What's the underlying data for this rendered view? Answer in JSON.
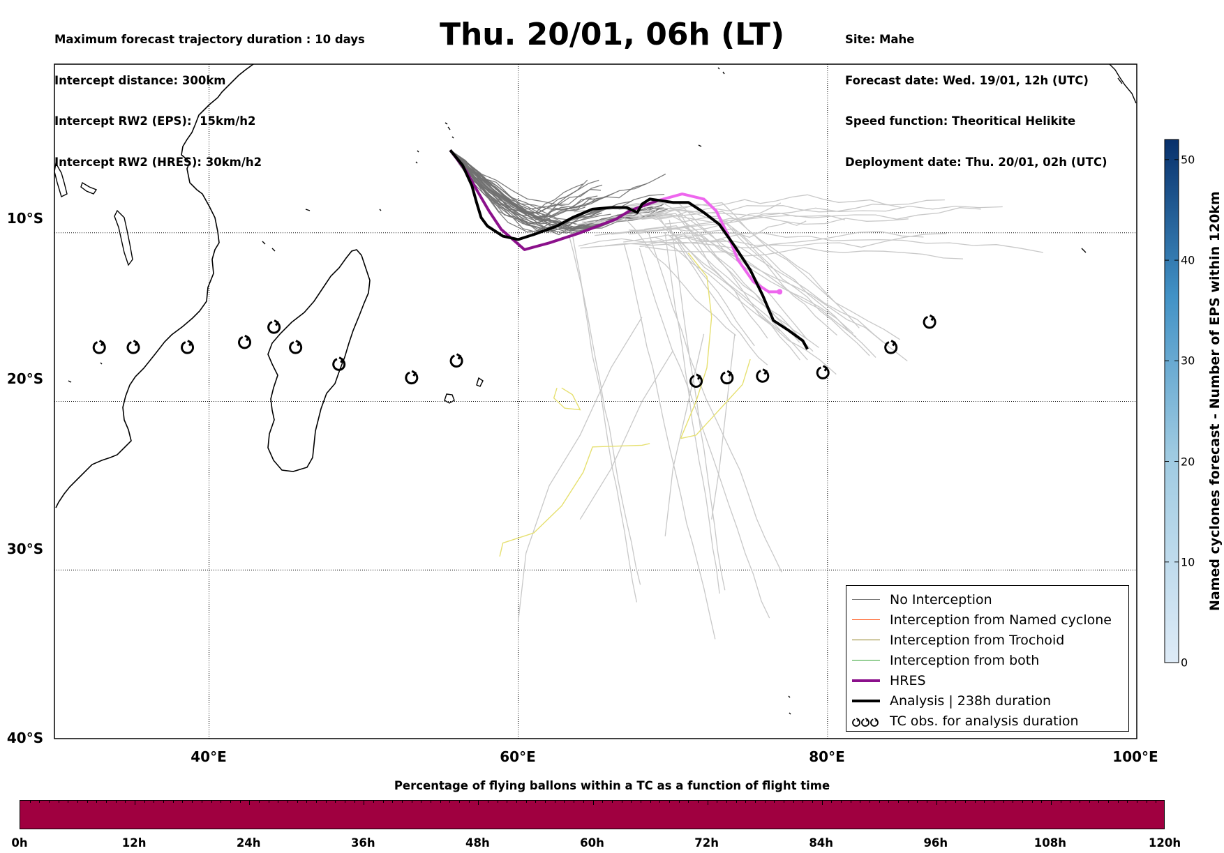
{
  "header_left": [
    "Maximum forecast trajectory duration : 10 days",
    "Intercept distance: 300km",
    "Intercept RW2 (EPS):  15km/h2",
    "Intercept RW2 (HRES): 30km/h2"
  ],
  "header_right": [
    "Site: Mahe",
    "Forecast date: Wed. 19/01, 12h (UTC)",
    "Speed function: Theoritical Helikite",
    "Deployment date: Thu. 20/01, 02h (UTC)"
  ],
  "title": "Thu. 20/01, 06h (LT)",
  "map": {
    "lon_range": [
      30,
      100
    ],
    "lat_range": [
      -40,
      0
    ],
    "lon_ticks": [
      "40°E",
      "60°E",
      "80°E",
      "100°E"
    ],
    "lat_ticks": [
      "10°S",
      "20°S",
      "30°S",
      "40°S"
    ],
    "colors": {
      "no_interception": "#888888",
      "no_interception_light": "#cccccc",
      "named_cyclone": "#ff5a1f",
      "trochoid": "#8a7a1a",
      "both": "#2ea02e",
      "hres": "#8b108b",
      "hres_late": "#ee66ee",
      "analysis": "#000000",
      "yellow_track": "#e6e070"
    },
    "tc_obs": [
      {
        "lon": 32.9,
        "lat": -16.8
      },
      {
        "lon": 35.1,
        "lat": -16.8
      },
      {
        "lon": 38.6,
        "lat": -16.8
      },
      {
        "lon": 42.3,
        "lat": -16.5
      },
      {
        "lon": 44.2,
        "lat": -15.6
      },
      {
        "lon": 45.6,
        "lat": -16.8
      },
      {
        "lon": 48.4,
        "lat": -17.8
      },
      {
        "lon": 53.1,
        "lat": -18.6
      },
      {
        "lon": 56.0,
        "lat": -17.6
      },
      {
        "lon": 71.5,
        "lat": -18.8
      },
      {
        "lon": 73.5,
        "lat": -18.6
      },
      {
        "lon": 75.8,
        "lat": -18.5
      },
      {
        "lon": 79.7,
        "lat": -18.3
      },
      {
        "lon": 84.1,
        "lat": -16.8
      },
      {
        "lon": 86.6,
        "lat": -15.3
      }
    ],
    "hres_track": [
      [
        55.6,
        -5.1
      ],
      [
        56.6,
        -6.3
      ],
      [
        57.4,
        -7.6
      ],
      [
        58.1,
        -8.7
      ],
      [
        58.9,
        -9.8
      ],
      [
        60.4,
        -11.0
      ],
      [
        62.0,
        -10.6
      ],
      [
        64.0,
        -10.0
      ],
      [
        66.3,
        -9.2
      ],
      [
        67.2,
        -8.7
      ],
      [
        69.0,
        -8.1
      ],
      [
        70.6,
        -7.7
      ],
      [
        72.0,
        -8.0
      ],
      [
        72.8,
        -8.7
      ],
      [
        73.5,
        -10.0
      ],
      [
        74.2,
        -11.6
      ],
      [
        75.2,
        -12.9
      ],
      [
        76.2,
        -13.5
      ],
      [
        76.9,
        -13.5
      ]
    ],
    "hres_split_index": 10,
    "analysis_track": [
      [
        55.6,
        -5.1
      ],
      [
        56.4,
        -6.0
      ],
      [
        57.0,
        -7.2
      ],
      [
        57.3,
        -8.2
      ],
      [
        57.6,
        -9.1
      ],
      [
        58.0,
        -9.6
      ],
      [
        59.0,
        -10.2
      ],
      [
        60.0,
        -10.4
      ],
      [
        61.0,
        -10.1
      ],
      [
        62.5,
        -9.6
      ],
      [
        63.5,
        -9.1
      ],
      [
        64.8,
        -8.6
      ],
      [
        66.0,
        -8.5
      ],
      [
        67.0,
        -8.5
      ],
      [
        67.7,
        -8.8
      ],
      [
        68.0,
        -8.3
      ],
      [
        68.5,
        -8.0
      ],
      [
        70.0,
        -8.2
      ],
      [
        71.0,
        -8.2
      ],
      [
        72.0,
        -8.8
      ],
      [
        73.0,
        -9.5
      ],
      [
        74.0,
        -10.8
      ],
      [
        75.0,
        -12.2
      ],
      [
        75.8,
        -13.7
      ],
      [
        76.5,
        -15.2
      ],
      [
        77.5,
        -15.8
      ],
      [
        78.4,
        -16.4
      ],
      [
        78.7,
        -16.9
      ]
    ]
  },
  "legend": [
    {
      "label": "No Interception",
      "color": "#777777",
      "width": 1.5,
      "kind": "line"
    },
    {
      "label": "Interception from Named cyclone",
      "color": "#ff5a1f",
      "width": 1.5,
      "kind": "line"
    },
    {
      "label": "Interception from Trochoid",
      "color": "#8a7a1a",
      "width": 1.5,
      "kind": "line"
    },
    {
      "label": "Interception from both",
      "color": "#2ea02e",
      "width": 1.5,
      "kind": "line"
    },
    {
      "label": "HRES",
      "color": "#8b108b",
      "width": 4,
      "kind": "line"
    },
    {
      "label": "Analysis | 238h duration",
      "color": "#000000",
      "width": 4,
      "kind": "line"
    },
    {
      "label": "TC obs. for analysis duration",
      "color": "#000000",
      "width": 2,
      "kind": "tc-symbol"
    }
  ],
  "colorbar": {
    "label": "Named cyclones forecast - Number of EPS within 120km",
    "min": 0,
    "max": 52,
    "ticks": [
      "0",
      "10",
      "20",
      "30",
      "40",
      "50"
    ],
    "tick_values": [
      0,
      10,
      20,
      30,
      40,
      50
    ],
    "color_low": "#deebf7",
    "color_high": "#08306b"
  },
  "bottom": {
    "title": "Percentage of flying ballons within a TC as a function of flight time",
    "ticks": [
      "0h",
      "12h",
      "24h",
      "36h",
      "48h",
      "60h",
      "72h",
      "84h",
      "96h",
      "108h",
      "120h"
    ],
    "fill_color": "#a00040"
  }
}
